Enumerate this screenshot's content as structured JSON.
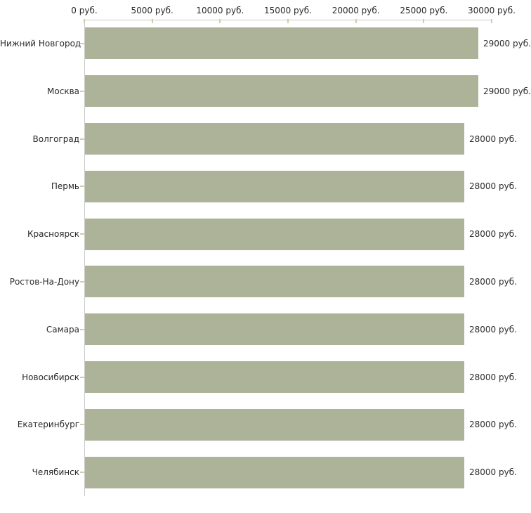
{
  "chart_data": {
    "type": "bar",
    "orientation": "horizontal",
    "title": "",
    "xlabel": "",
    "ylabel": "",
    "xlim": [
      0,
      30000
    ],
    "grid": false,
    "legend": "none",
    "categories": [
      "Нижний Новгород",
      "Москва",
      "Волгоград",
      "Пермь",
      "Красноярск",
      "Ростов-На-Дону",
      "Самара",
      "Новосибирск",
      "Екатеринбург",
      "Челябинск"
    ],
    "values": [
      29000,
      29000,
      28000,
      28000,
      28000,
      28000,
      28000,
      28000,
      28000,
      28000
    ],
    "value_labels": [
      "29000 руб.",
      "29000 руб.",
      "28000 руб.",
      "28000 руб.",
      "28000 руб.",
      "28000 руб.",
      "28000 руб.",
      "28000 руб.",
      "28000 руб.",
      "28000 руб."
    ],
    "x_ticks": [
      0,
      5000,
      10000,
      15000,
      20000,
      25000,
      30000
    ],
    "x_tick_labels": [
      "0 руб.",
      "5000 руб.",
      "10000 руб.",
      "15000 руб.",
      "20000 руб.",
      "25000 руб.",
      "30000 руб."
    ],
    "colors": {
      "bar": "#adb398",
      "axis_line": "#c9c9c9",
      "tick_mark": "#cfcfa6",
      "text": "#2a2a2a",
      "background": "#ffffff"
    }
  }
}
